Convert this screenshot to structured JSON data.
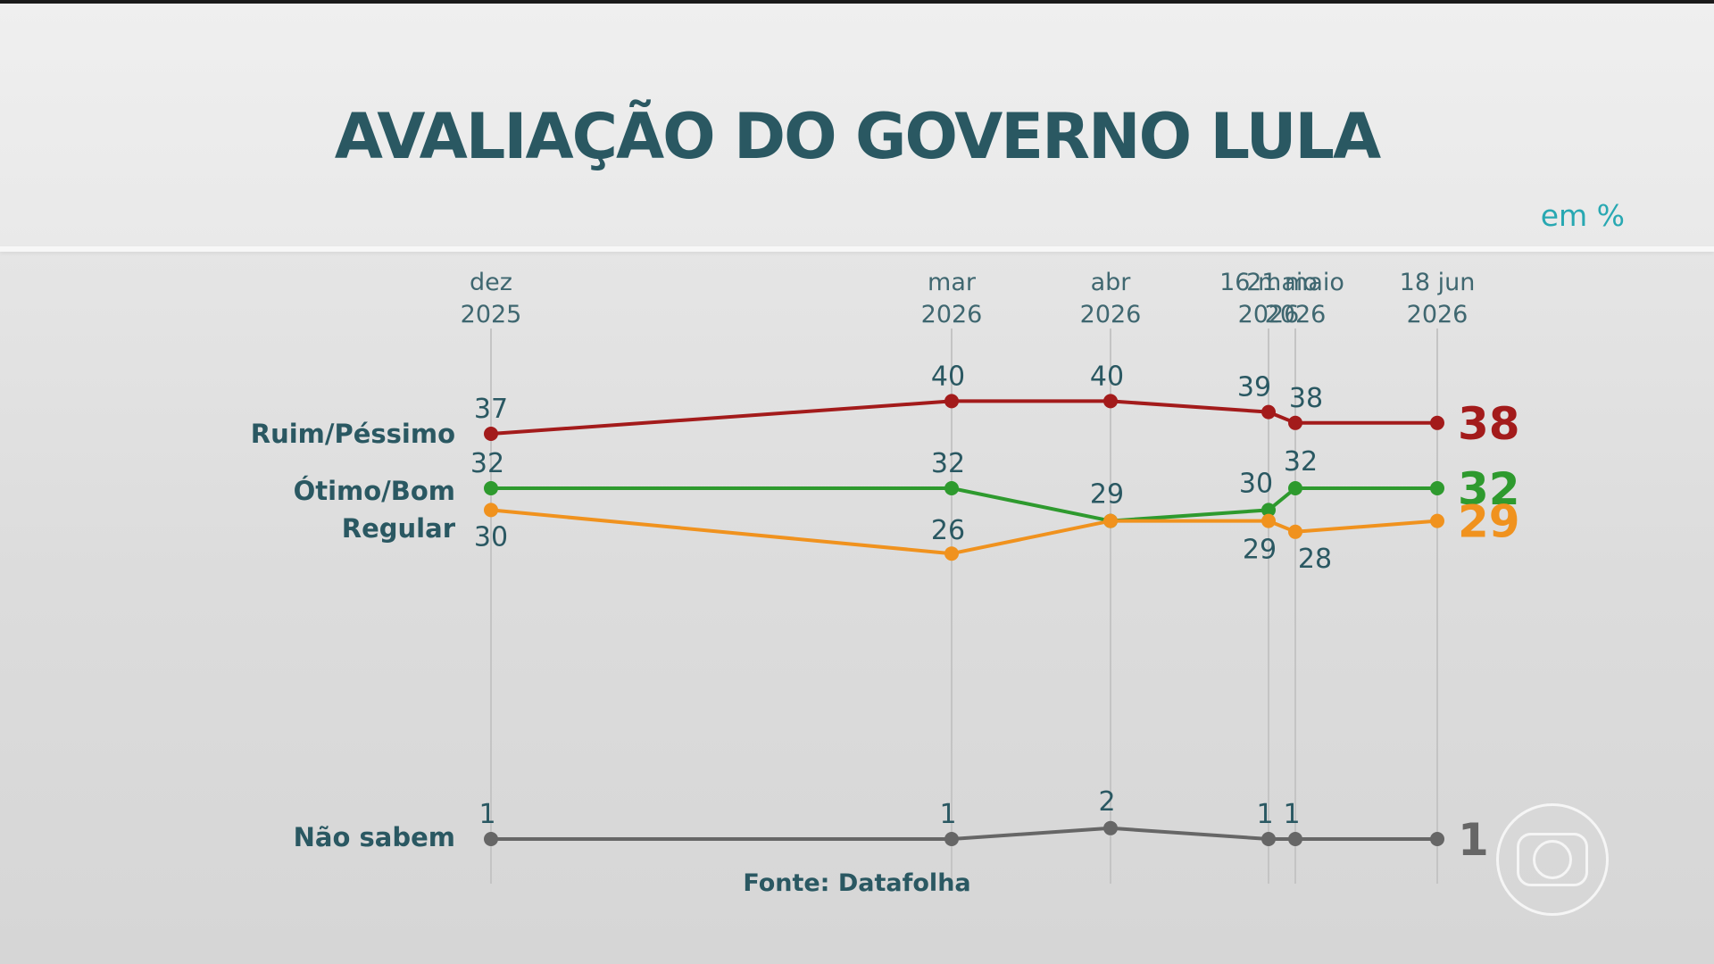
{
  "header": {
    "title": "AVALIAÇÃO DO GOVERNO LULA",
    "unit": "em %"
  },
  "footer": {
    "source": "Fonte: Datafolha"
  },
  "logo": {
    "name": "globo-logo"
  },
  "chart_data": {
    "type": "line",
    "title": "AVALIAÇÃO DO GOVERNO LULA",
    "unit": "em %",
    "x": [
      [
        "dez",
        "2025"
      ],
      [
        "mar",
        "2026"
      ],
      [
        "abr",
        "2026"
      ],
      [
        "16 maio",
        "2026"
      ],
      [
        "21 maio",
        "2026"
      ],
      [
        "18 jun",
        "2026"
      ]
    ],
    "x_dates": [
      "2025-12",
      "2026-03",
      "2026-04",
      "2026-05-16",
      "2026-05-21",
      "2026-06-18"
    ],
    "series": [
      {
        "name": "Ruim/Péssimo",
        "color": "#a31b1b",
        "values": [
          37,
          40,
          40,
          39,
          38,
          38
        ],
        "end_value": "38"
      },
      {
        "name": "Ótimo/Bom",
        "color": "#2e9a2e",
        "values": [
          32,
          32,
          29,
          30,
          32,
          32
        ],
        "end_value": "32"
      },
      {
        "name": "Regular",
        "color": "#f0921e",
        "values": [
          30,
          26,
          29,
          29,
          28,
          29
        ],
        "end_value": "29"
      },
      {
        "name": "Não sabem",
        "color": "#666666",
        "values": [
          1,
          1,
          2,
          1,
          1,
          1
        ],
        "end_value": "1"
      }
    ],
    "grid": false,
    "legend": "left"
  }
}
